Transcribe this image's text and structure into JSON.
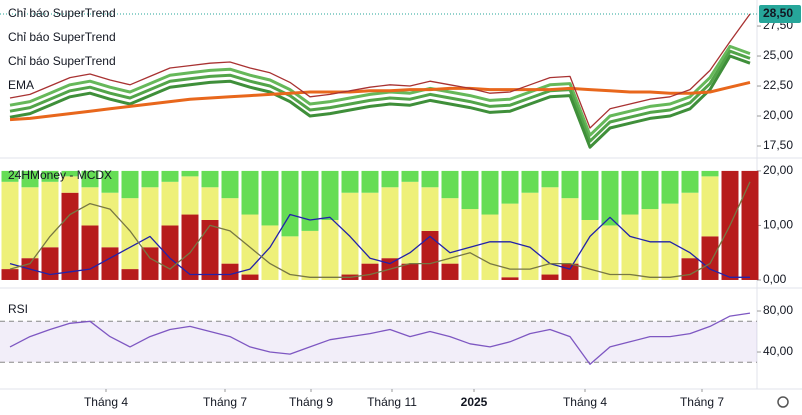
{
  "chart_data": [
    {
      "type": "line",
      "xlim": [
        -0.5,
        37.35
      ],
      "xticks": [
        {
          "value": 4.8,
          "label": "Tháng 4"
        },
        {
          "value": 10.75,
          "label": "Tháng 7"
        },
        {
          "value": 15.05,
          "label": "Tháng 9"
        },
        {
          "value": 19.1,
          "label": "Tháng 11"
        },
        {
          "value": 23.2,
          "label": "2025"
        },
        {
          "value": 28.75,
          "label": "Tháng 4"
        },
        {
          "value": 34.6,
          "label": "Tháng 7"
        }
      ],
      "ylim": [
        16.5,
        29.67
      ],
      "yticks": [
        {
          "value": 17.5,
          "label": "17,50"
        },
        {
          "value": 20,
          "label": "20,00"
        },
        {
          "value": 22.5,
          "label": "22,50"
        },
        {
          "value": 25,
          "label": "25,00"
        },
        {
          "value": 27.5,
          "label": "27,50"
        }
      ],
      "last_price": {
        "value": 28.5,
        "label": "28,50",
        "color": "#26a69a"
      },
      "series": [
        {
          "name": "Chỉ báo SuperTrend",
          "color": "#66b85a",
          "values": [
            20.9,
            21.2,
            21.9,
            22.6,
            22.9,
            22.4,
            22.0,
            22.7,
            23.4,
            23.6,
            23.8,
            23.9,
            23.4,
            23.0,
            22.2,
            21.0,
            21.2,
            21.5,
            21.8,
            22.0,
            21.9,
            22.3,
            22.0,
            21.7,
            21.3,
            21.4,
            22.0,
            22.6,
            22.7,
            18.4,
            20.0,
            20.4,
            20.8,
            21.0,
            21.6,
            23.2,
            25.8,
            25.2
          ]
        },
        {
          "name": "Chỉ báo SuperTrend",
          "color": "#52a449",
          "values": [
            20.4,
            20.7,
            21.4,
            22.1,
            22.4,
            21.9,
            21.5,
            22.2,
            22.9,
            23.1,
            23.3,
            23.4,
            22.9,
            22.5,
            21.7,
            20.5,
            20.7,
            21.0,
            21.3,
            21.5,
            21.4,
            21.8,
            21.5,
            21.2,
            20.8,
            20.9,
            21.5,
            22.1,
            22.2,
            17.9,
            19.5,
            19.9,
            20.3,
            20.5,
            21.1,
            22.7,
            25.4,
            24.8
          ]
        },
        {
          "name": "Chỉ báo SuperTrend",
          "color": "#3f8f3a",
          "values": [
            19.9,
            20.2,
            20.9,
            21.6,
            21.9,
            21.4,
            21.0,
            21.7,
            22.4,
            22.6,
            22.8,
            22.9,
            22.4,
            22.0,
            21.2,
            20.0,
            20.2,
            20.5,
            20.8,
            21.0,
            20.9,
            21.3,
            21.0,
            20.7,
            20.3,
            20.4,
            21.0,
            21.6,
            21.7,
            17.4,
            19.0,
            19.4,
            19.8,
            20.0,
            20.6,
            22.2,
            25.0,
            24.4
          ]
        },
        {
          "name": "EMA",
          "color": "#e8671c",
          "values": [
            19.7,
            19.8,
            20.0,
            20.2,
            20.4,
            20.6,
            20.8,
            21.0,
            21.2,
            21.4,
            21.5,
            21.6,
            21.7,
            21.8,
            21.9,
            22.0,
            22.0,
            22.0,
            22.1,
            22.1,
            22.2,
            22.2,
            22.3,
            22.3,
            22.2,
            22.2,
            22.2,
            22.2,
            22.3,
            22.2,
            22.1,
            22.0,
            22.0,
            21.9,
            21.9,
            22.0,
            22.4,
            22.8
          ]
        },
        {
          "color": "#a83232",
          "values": [
            21.5,
            21.8,
            22.5,
            23.2,
            23.5,
            23.0,
            22.6,
            23.3,
            24.0,
            24.2,
            24.4,
            24.5,
            24.0,
            23.6,
            22.8,
            21.6,
            21.8,
            22.1,
            22.4,
            22.6,
            22.5,
            22.9,
            22.6,
            22.3,
            21.9,
            22.0,
            22.6,
            23.2,
            23.3,
            19.0,
            20.6,
            21.0,
            21.4,
            21.6,
            22.2,
            23.8,
            26.2,
            28.5
          ]
        }
      ]
    },
    {
      "type": "bar",
      "title": "24HMoney - MCDX",
      "xlim": [
        -0.5,
        37.35
      ],
      "ylim": [
        -1.47,
        22
      ],
      "yticks": [
        {
          "value": 0,
          "label": "0,00"
        },
        {
          "value": 10,
          "label": "10,00"
        },
        {
          "value": 20,
          "label": "20,00"
        }
      ],
      "series": [
        {
          "color": "#b71c1c",
          "values": [
            2,
            4,
            6,
            16,
            10,
            6,
            2,
            6,
            10,
            12,
            11,
            3,
            1,
            0,
            0,
            0,
            0,
            1,
            3,
            4,
            3,
            9,
            3,
            0,
            0,
            0.5,
            0,
            1,
            3,
            0,
            0,
            0,
            0,
            0,
            4,
            8,
            20,
            20
          ]
        },
        {
          "color": "#eef07a",
          "values": [
            16,
            13,
            12,
            3,
            7,
            10,
            13,
            11,
            8,
            7,
            6,
            12,
            11,
            10,
            8,
            9,
            11,
            15,
            13,
            13,
            15,
            8,
            12,
            13,
            12,
            13.5,
            16,
            16,
            12,
            11,
            10,
            12,
            13,
            14,
            12,
            11,
            0,
            0
          ]
        },
        {
          "color": "#66dd55",
          "values": [
            2,
            3,
            2,
            1,
            3,
            4,
            5,
            3,
            2,
            1,
            3,
            5,
            8,
            10,
            12,
            11,
            9,
            4,
            4,
            3,
            2,
            3,
            5,
            7,
            8,
            6,
            4,
            3,
            5,
            9,
            10,
            8,
            7,
            6,
            4,
            1,
            0,
            0
          ]
        },
        {
          "type": "line",
          "color": "#2222aa",
          "values": [
            3,
            2,
            1,
            1.5,
            2,
            4,
            6,
            8,
            4,
            1,
            1,
            1,
            2,
            6,
            12,
            11,
            11.5,
            8,
            4,
            3,
            5,
            8,
            5,
            6,
            7,
            7,
            6,
            3,
            2,
            8,
            11.5,
            8,
            7,
            7,
            5,
            2,
            0.5,
            0.5
          ]
        },
        {
          "type": "line",
          "color": "#777744",
          "values": [
            2,
            3,
            8,
            12,
            14,
            13,
            9,
            4,
            2,
            5,
            10,
            9,
            6,
            3,
            1,
            0.5,
            0.5,
            0.5,
            1,
            2,
            3,
            3,
            4,
            5,
            3,
            2,
            2,
            3,
            3,
            2,
            1,
            1,
            0.5,
            0.5,
            1,
            3,
            10,
            18
          ]
        }
      ]
    },
    {
      "type": "line",
      "title": "RSI",
      "xlim": [
        -0.5,
        37.35
      ],
      "ylim": [
        4.9,
        100.5
      ],
      "yticks": [
        {
          "value": 40,
          "label": "40,00"
        },
        {
          "value": 80,
          "label": "80,00"
        }
      ],
      "bands": [
        30,
        70
      ],
      "series": [
        {
          "color": "#7e57c2",
          "values": [
            45,
            55,
            62,
            68,
            70,
            55,
            45,
            55,
            62,
            65,
            60,
            55,
            45,
            40,
            38,
            45,
            52,
            55,
            58,
            62,
            55,
            60,
            55,
            48,
            45,
            50,
            58,
            62,
            55,
            28,
            45,
            50,
            55,
            55,
            58,
            65,
            75,
            78
          ]
        }
      ]
    }
  ]
}
